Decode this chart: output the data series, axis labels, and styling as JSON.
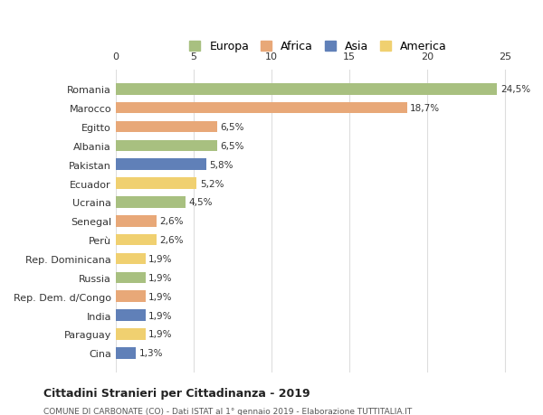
{
  "countries": [
    "Romania",
    "Marocco",
    "Egitto",
    "Albania",
    "Pakistan",
    "Ecuador",
    "Ucraina",
    "Senegal",
    "Perù",
    "Rep. Dominicana",
    "Russia",
    "Rep. Dem. d/Congo",
    "India",
    "Paraguay",
    "Cina"
  ],
  "values": [
    24.5,
    18.7,
    6.5,
    6.5,
    5.8,
    5.2,
    4.5,
    2.6,
    2.6,
    1.9,
    1.9,
    1.9,
    1.9,
    1.9,
    1.3
  ],
  "labels": [
    "24,5%",
    "18,7%",
    "6,5%",
    "6,5%",
    "5,8%",
    "5,2%",
    "4,5%",
    "2,6%",
    "2,6%",
    "1,9%",
    "1,9%",
    "1,9%",
    "1,9%",
    "1,9%",
    "1,3%"
  ],
  "colors": [
    "#a8c080",
    "#e8a878",
    "#e8a878",
    "#a8c080",
    "#6080b8",
    "#f0d070",
    "#a8c080",
    "#e8a878",
    "#f0d070",
    "#f0d070",
    "#a8c080",
    "#e8a878",
    "#6080b8",
    "#f0d070",
    "#6080b8"
  ],
  "legend_labels": [
    "Europa",
    "Africa",
    "Asia",
    "America"
  ],
  "legend_colors": [
    "#a8c080",
    "#e8a878",
    "#6080b8",
    "#f0d070"
  ],
  "title": "Cittadini Stranieri per Cittadinanza - 2019",
  "subtitle": "COMUNE DI CARBONATE (CO) - Dati ISTAT al 1° gennaio 2019 - Elaborazione TUTTITALIA.IT",
  "xlim": [
    0,
    26
  ],
  "xticks": [
    0,
    5,
    10,
    15,
    20,
    25
  ],
  "bg_color": "#ffffff",
  "grid_color": "#dddddd"
}
